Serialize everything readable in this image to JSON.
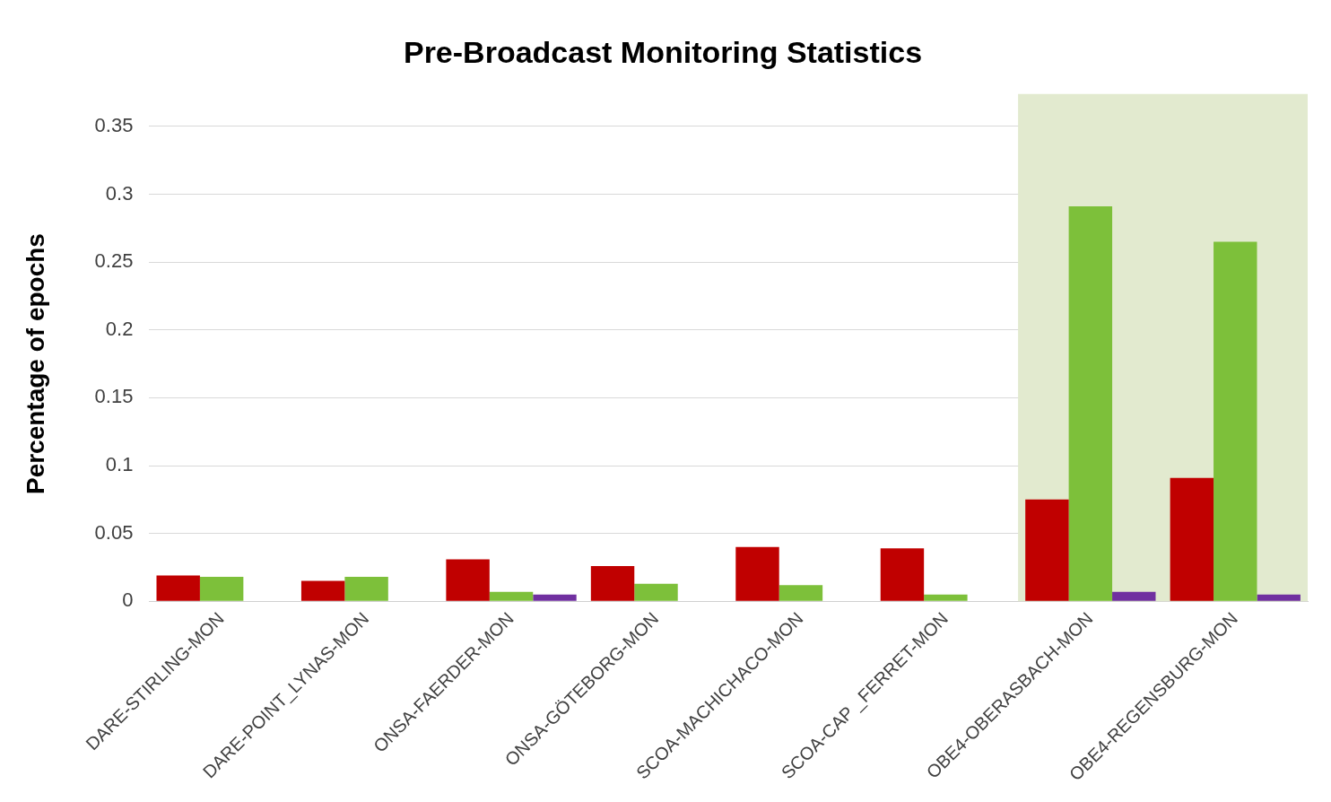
{
  "chart_data": {
    "type": "bar",
    "title": "Pre-Broadcast Monitoring Statistics",
    "ylabel": "Percentage of epochs",
    "categories": [
      "DARE-STIRLING-MON",
      "DARE-POINT_LYNAS-MON",
      "ONSA-FAERDER-MON",
      "ONSA-GÖTEBORG-MON",
      "SCOA-MACHICHACO-MON",
      "SCOA-CAP _FERRET-MON",
      "OBE4-OBERASBACH-MON",
      "OBE4-REGENSBURG-MON"
    ],
    "series": [
      {
        "color": "#c00000",
        "values": [
          0.019,
          0.015,
          0.031,
          0.026,
          0.04,
          0.039,
          0.075,
          0.091
        ]
      },
      {
        "color": "#7dc03a",
        "values": [
          0.018,
          0.018,
          0.007,
          0.013,
          0.012,
          0.005,
          0.291,
          0.265
        ]
      },
      {
        "color": "#7030a0",
        "values": [
          null,
          null,
          0.005,
          null,
          null,
          null,
          0.007,
          0.005
        ]
      }
    ],
    "ylim": [
      0,
      0.35
    ],
    "yticks": [
      0,
      0.05,
      0.1,
      0.15,
      0.2,
      0.25,
      0.3,
      0.35
    ],
    "grid": "y",
    "legend": false,
    "bands": [
      {
        "axis": "x",
        "from": "OBE4-OBERASBACH-MON",
        "to": "OBE4-REGENSBURG-MON",
        "color": "#e2eacf"
      }
    ]
  }
}
